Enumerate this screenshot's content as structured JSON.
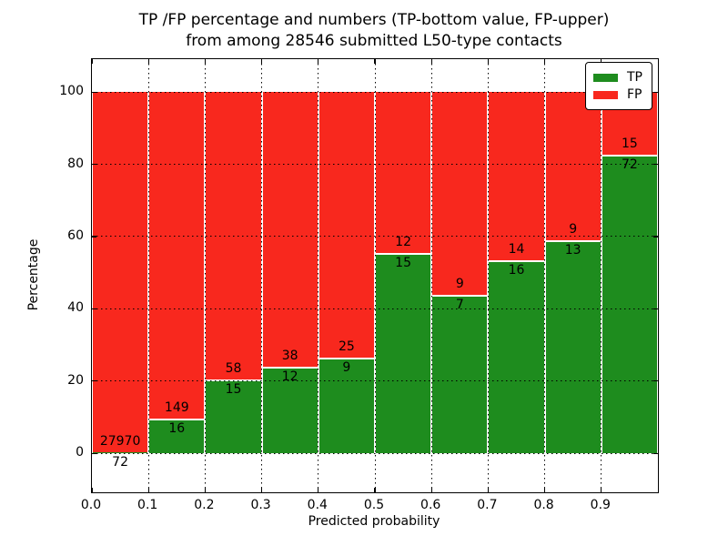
{
  "figure": {
    "title_line1": "TP /FP percentage and numbers (TP-bottom value, FP-upper)",
    "title_line2": "from among 28546 submitted L50-type contacts"
  },
  "chart_data": {
    "type": "bar",
    "stacked": true,
    "normalized_to_percent": true,
    "title": "TP /FP percentage and numbers (TP-bottom value, FP-upper) from among 28546 submitted L50-type contacts",
    "xlabel": "Predicted probability",
    "ylabel": "Percentage",
    "total_contacts": 28546,
    "bins": [
      [
        0.0,
        0.1
      ],
      [
        0.1,
        0.2
      ],
      [
        0.2,
        0.3
      ],
      [
        0.3,
        0.4
      ],
      [
        0.4,
        0.5
      ],
      [
        0.5,
        0.6
      ],
      [
        0.6,
        0.7
      ],
      [
        0.7,
        0.8
      ],
      [
        0.8,
        0.9
      ],
      [
        0.9,
        1.0
      ]
    ],
    "series": [
      {
        "name": "TP",
        "color": "#1e8c1e",
        "counts": [
          72,
          16,
          15,
          12,
          9,
          15,
          7,
          16,
          13,
          72
        ]
      },
      {
        "name": "FP",
        "color": "#f8281e",
        "counts": [
          27970,
          149,
          58,
          38,
          25,
          12,
          9,
          14,
          9,
          15
        ]
      }
    ],
    "tp_percent_per_bin": [
      0.26,
      9.7,
      20.55,
      24.0,
      26.47,
      55.56,
      43.75,
      53.33,
      59.09,
      82.76
    ],
    "bar_label_rule": "TP count printed below green/red boundary, FP count printed above it",
    "xticks": [
      "0.0",
      "0.1",
      "0.2",
      "0.3",
      "0.4",
      "0.5",
      "0.6",
      "0.7",
      "0.8",
      "0.9"
    ],
    "yticks": [
      "0",
      "20",
      "40",
      "60",
      "80",
      "100"
    ],
    "xlim": [
      0.0,
      1.0
    ],
    "ylim": [
      -10.8,
      109.1
    ],
    "grid": {
      "style": "dotted",
      "color": "#000000",
      "on": true
    },
    "legend": {
      "position": "upper right",
      "entries": [
        {
          "label": "TP",
          "color": "#1e8c1e"
        },
        {
          "label": "FP",
          "color": "#f8281e"
        }
      ]
    }
  }
}
